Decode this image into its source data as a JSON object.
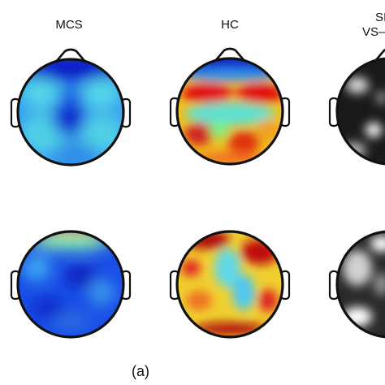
{
  "column_titles": {
    "mcs": "MCS",
    "hc": "HC",
    "third_line1": "SI",
    "third_line2": "VS–"
  },
  "caption": "(a)",
  "colors": {
    "jet_low": "#0000c8",
    "jet_mid": "#41e6d2",
    "jet_high": "#c80000",
    "gray_low": "#000000",
    "gray_high": "#ffffff",
    "outline": "#111111"
  }
}
